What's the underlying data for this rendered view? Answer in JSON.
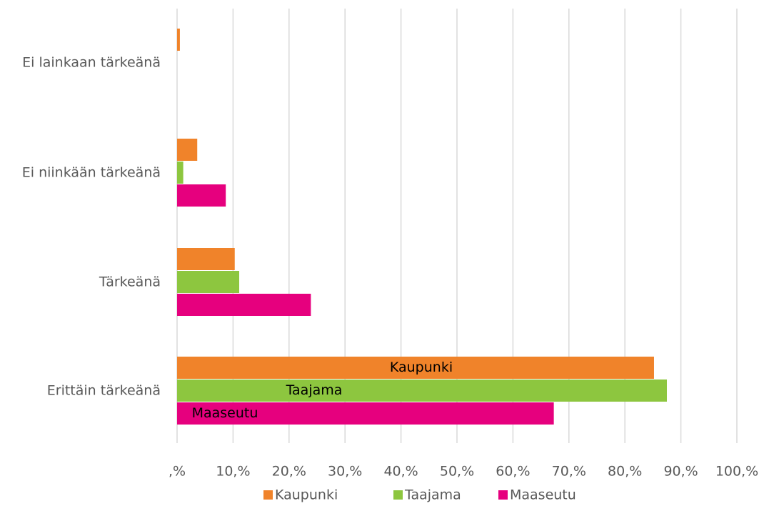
{
  "chart_data": {
    "type": "bar",
    "orientation": "horizontal",
    "categories": [
      "Ei lainkaan tärkeänä",
      "Ei niinkään tärkeänä",
      "Tärkeänä",
      "Erittäin tärkeänä"
    ],
    "series": [
      {
        "name": "Kaupunki",
        "color": "#f0832a",
        "values": [
          0.5,
          3.6,
          10.3,
          85.2
        ]
      },
      {
        "name": "Taajama",
        "color": "#8dc63f",
        "values": [
          0,
          1.1,
          11.1,
          87.5
        ]
      },
      {
        "name": "Maaseutu",
        "color": "#e6007e",
        "values": [
          0,
          8.7,
          23.9,
          67.3
        ]
      }
    ],
    "xlim": [
      0,
      100
    ],
    "xticks": [
      {
        "value": 0,
        "label": ",%"
      },
      {
        "value": 10,
        "label": "10,%"
      },
      {
        "value": 20,
        "label": "20,%"
      },
      {
        "value": 30,
        "label": "30,%"
      },
      {
        "value": 40,
        "label": "40,%"
      },
      {
        "value": 50,
        "label": "50,%"
      },
      {
        "value": 60,
        "label": "60,%"
      },
      {
        "value": 70,
        "label": "70,%"
      },
      {
        "value": 80,
        "label": "80,%"
      },
      {
        "value": 90,
        "label": "90,%"
      },
      {
        "value": 100,
        "label": "100,%"
      }
    ],
    "grid": true,
    "legend": "bottom"
  }
}
